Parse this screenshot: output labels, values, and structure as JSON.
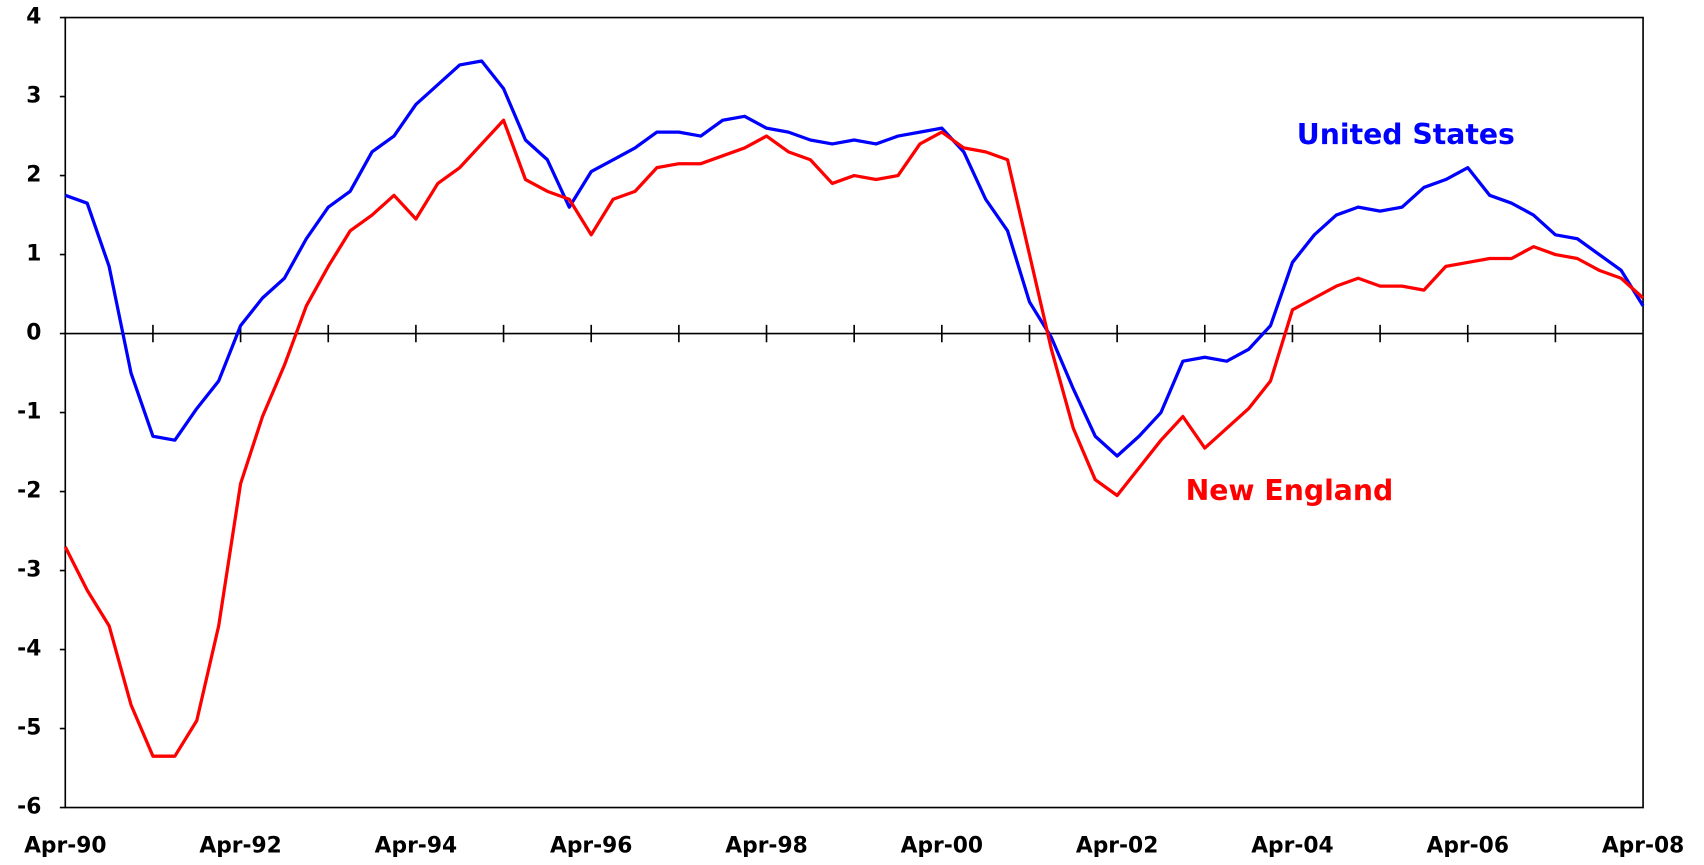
{
  "chart_data": {
    "type": "line",
    "categories": [
      "Apr-90",
      null,
      null,
      null,
      null,
      null,
      null,
      null,
      "Apr-92",
      null,
      null,
      null,
      null,
      null,
      null,
      null,
      "Apr-94",
      null,
      null,
      null,
      null,
      null,
      null,
      null,
      "Apr-96",
      null,
      null,
      null,
      null,
      null,
      null,
      null,
      "Apr-98",
      null,
      null,
      null,
      null,
      null,
      null,
      null,
      "Apr-00",
      null,
      null,
      null,
      null,
      null,
      null,
      null,
      "Apr-02",
      null,
      null,
      null,
      null,
      null,
      null,
      null,
      "Apr-04",
      null,
      null,
      null,
      null,
      null,
      null,
      null,
      "Apr-06",
      null,
      null,
      null,
      null,
      null,
      null,
      null,
      "Apr-08"
    ],
    "series": [
      {
        "name": "United States",
        "color": "#0000ff",
        "values": [
          1.75,
          1.65,
          0.85,
          -0.5,
          -1.3,
          -1.35,
          -0.95,
          -0.6,
          0.1,
          0.45,
          0.7,
          1.2,
          1.6,
          1.8,
          2.3,
          2.5,
          2.9,
          3.15,
          3.4,
          3.45,
          3.1,
          2.45,
          2.2,
          1.6,
          2.05,
          2.2,
          2.35,
          2.55,
          2.55,
          2.5,
          2.7,
          2.75,
          2.6,
          2.55,
          2.45,
          2.4,
          2.45,
          2.4,
          2.5,
          2.55,
          2.6,
          2.3,
          1.7,
          1.3,
          0.4,
          -0.05,
          -0.7,
          -1.3,
          -1.55,
          -1.3,
          -1.0,
          -0.35,
          -0.3,
          -0.35,
          -0.2,
          0.1,
          0.9,
          1.25,
          1.5,
          1.6,
          1.55,
          1.6,
          1.85,
          1.95,
          2.1,
          1.75,
          1.65,
          1.5,
          1.25,
          1.2,
          1.0,
          0.8,
          0.35
        ]
      },
      {
        "name": "New England",
        "color": "#ff0000",
        "values": [
          -2.7,
          -3.25,
          -3.7,
          -4.7,
          -5.35,
          -5.35,
          -4.9,
          -3.7,
          -1.9,
          -1.05,
          -0.4,
          0.35,
          0.85,
          1.3,
          1.5,
          1.75,
          1.45,
          1.9,
          2.1,
          2.4,
          2.7,
          1.95,
          1.8,
          1.7,
          1.25,
          1.7,
          1.8,
          2.1,
          2.15,
          2.15,
          2.25,
          2.35,
          2.5,
          2.3,
          2.2,
          1.9,
          2.0,
          1.95,
          2.0,
          2.4,
          2.55,
          2.35,
          2.3,
          2.2,
          1.0,
          -0.2,
          -1.2,
          -1.85,
          -2.05,
          -1.7,
          -1.35,
          -1.05,
          -1.45,
          -1.2,
          -0.95,
          -0.6,
          0.3,
          0.45,
          0.6,
          0.7,
          0.6,
          0.6,
          0.55,
          0.85,
          0.9,
          0.95,
          0.95,
          1.1,
          1.0,
          0.95,
          0.8,
          0.7,
          0.45
        ]
      }
    ],
    "ylim": [
      -6,
      4
    ],
    "yticks": [
      -6,
      -5,
      -4,
      -3,
      -2,
      -1,
      0,
      1,
      2,
      3,
      4
    ],
    "grid": false
  }
}
